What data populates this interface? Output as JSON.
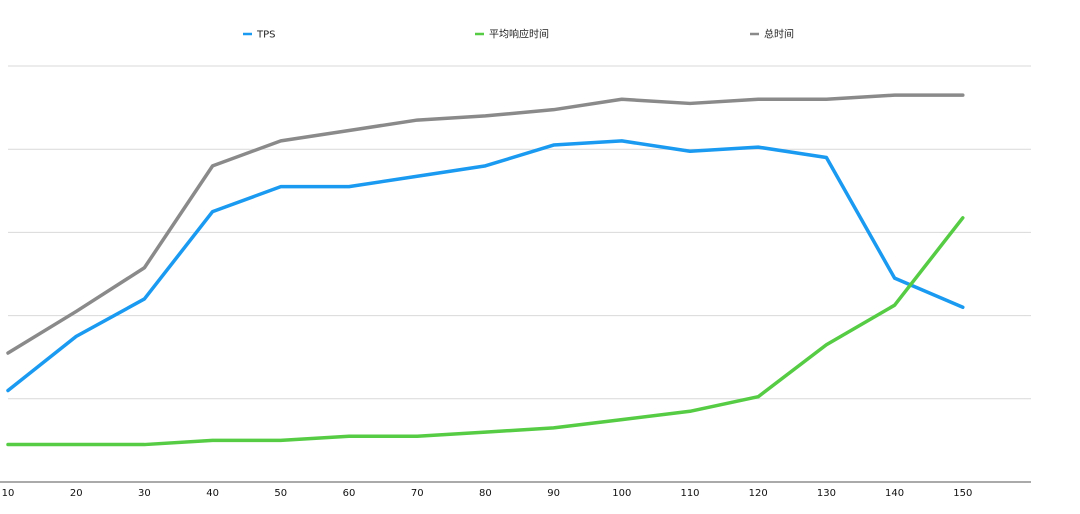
{
  "chart_data": {
    "type": "line",
    "title": "",
    "xlabel": "",
    "ylabel": "",
    "x": [
      10,
      20,
      30,
      40,
      50,
      60,
      70,
      80,
      90,
      100,
      110,
      120,
      130,
      140,
      150
    ],
    "xlim": [
      10,
      160
    ],
    "ylim": [
      0,
      100
    ],
    "y_gridlines": [
      20,
      40,
      60,
      80
    ],
    "grid": true,
    "legend_position": "top",
    "series": [
      {
        "name": "TPS",
        "color": "#1a9af0",
        "values": [
          22,
          35,
          44,
          65,
          71,
          71,
          73.5,
          76,
          81,
          82,
          79.5,
          80.5,
          78,
          49,
          42
        ]
      },
      {
        "name": "平均响应时间",
        "color": "#55cc44",
        "values": [
          9,
          9,
          9,
          10,
          10,
          11,
          11,
          12,
          13,
          15,
          17,
          20.5,
          33,
          42.5,
          63.5
        ]
      },
      {
        "name": "总时间",
        "color": "#8a8a8a",
        "values": [
          31,
          41,
          51.5,
          76,
          82,
          84.5,
          87,
          88,
          89.5,
          92,
          91,
          92,
          92,
          93,
          93
        ]
      }
    ]
  }
}
